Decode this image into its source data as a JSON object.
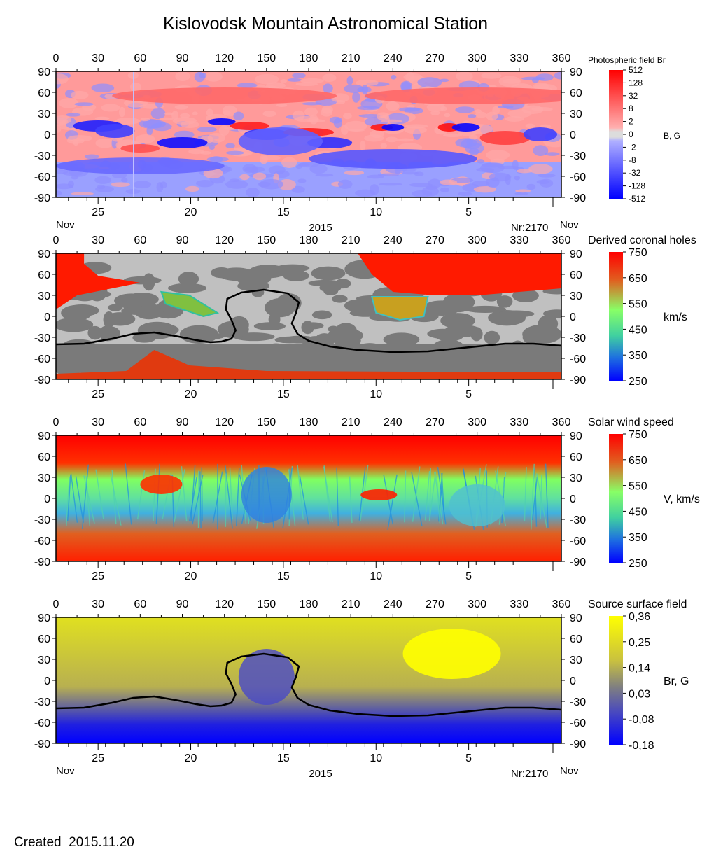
{
  "title": "Kislovodsk Mountain Astronomical Station",
  "created": "Created  2015.11.20",
  "axes": {
    "longitude_ticks": [
      0,
      30,
      60,
      90,
      120,
      150,
      180,
      210,
      240,
      270,
      300,
      330,
      360
    ],
    "latitude_ticks": [
      90,
      60,
      30,
      0,
      -30,
      -60,
      -90
    ],
    "date_ticks": [
      {
        "label": "25",
        "lon": 30
      },
      {
        "label": "20",
        "lon": 96
      },
      {
        "label": "15",
        "lon": 162
      },
      {
        "label": "10",
        "lon": 228
      },
      {
        "label": "5",
        "lon": 294
      }
    ],
    "month_left": "Nov",
    "month_right": "Nov",
    "year": "2015",
    "rotation": "Nr:2170"
  },
  "chart_data": [
    {
      "type": "heatmap",
      "title": "Photospheric field Br",
      "ylabel_right": "B, G",
      "xlim": [
        0,
        360
      ],
      "ylim": [
        -90,
        90
      ],
      "colorbar_ticks": [
        "512",
        "128",
        "32",
        "8",
        "2",
        "0",
        "-2",
        "-8",
        "-32",
        "-128",
        "-512"
      ],
      "colors": {
        "pos": "#ff0000",
        "neg": "#0000ff",
        "zero": "#dcdcdc"
      },
      "blobs": [
        {
          "lon": 30,
          "lat": 12,
          "w": 18,
          "h": 8,
          "v": -0.8
        },
        {
          "lon": 42,
          "lat": 5,
          "w": 14,
          "h": 10,
          "v": -0.6
        },
        {
          "lon": 60,
          "lat": -20,
          "w": 14,
          "h": 6,
          "v": 0.5
        },
        {
          "lon": 90,
          "lat": -12,
          "w": 18,
          "h": 8,
          "v": -0.9
        },
        {
          "lon": 118,
          "lat": 18,
          "w": 10,
          "h": 5,
          "v": -0.95
        },
        {
          "lon": 138,
          "lat": 12,
          "w": 14,
          "h": 6,
          "v": 0.8
        },
        {
          "lon": 150,
          "lat": 0,
          "w": 16,
          "h": 8,
          "v": -0.7
        },
        {
          "lon": 180,
          "lat": 3,
          "w": 18,
          "h": 6,
          "v": 0.8
        },
        {
          "lon": 195,
          "lat": -12,
          "w": 16,
          "h": 8,
          "v": -0.7
        },
        {
          "lon": 232,
          "lat": 10,
          "w": 8,
          "h": 5,
          "v": 0.85
        },
        {
          "lon": 240,
          "lat": 10,
          "w": 8,
          "h": 5,
          "v": -0.95
        },
        {
          "lon": 280,
          "lat": 10,
          "w": 8,
          "h": 6,
          "v": 0.9
        },
        {
          "lon": 292,
          "lat": 10,
          "w": 10,
          "h": 6,
          "v": -0.95
        },
        {
          "lon": 320,
          "lat": -5,
          "w": 18,
          "h": 10,
          "v": 0.6
        },
        {
          "lon": 345,
          "lat": 0,
          "w": 12,
          "h": 10,
          "v": -0.6
        },
        {
          "lon": 160,
          "lat": -10,
          "w": 30,
          "h": 20,
          "v": -0.4
        },
        {
          "lon": 240,
          "lat": -35,
          "w": 60,
          "h": 14,
          "v": -0.45
        },
        {
          "lon": 60,
          "lat": -45,
          "w": 60,
          "h": 12,
          "v": -0.35
        },
        {
          "lon": 120,
          "lat": 55,
          "w": 80,
          "h": 12,
          "v": 0.35
        },
        {
          "lon": 300,
          "lat": 55,
          "w": 80,
          "h": 12,
          "v": 0.35
        }
      ]
    },
    {
      "type": "heatmap",
      "title": "Derived coronal holes",
      "ylabel_right": "km/s",
      "xlim": [
        0,
        360
      ],
      "ylim": [
        -90,
        90
      ],
      "colorbar_ticks": [
        "750",
        "650",
        "550",
        "450",
        "350",
        "250"
      ],
      "neutral_line": true
    },
    {
      "type": "heatmap",
      "title": "Solar wind speed",
      "ylabel_right": "V, km/s",
      "xlim": [
        0,
        360
      ],
      "ylim": [
        -90,
        90
      ],
      "colorbar_ticks": [
        "750",
        "650",
        "550",
        "450",
        "350",
        "250"
      ],
      "vmin": 250,
      "vmax": 750
    },
    {
      "type": "heatmap",
      "title": "Source surface field",
      "ylabel_right": "Br, G",
      "xlim": [
        0,
        360
      ],
      "ylim": [
        -90,
        90
      ],
      "colorbar_ticks": [
        "0,36",
        "0,25",
        "0,14",
        "0,03",
        "-0,08",
        "-0,18"
      ],
      "vmin": -0.18,
      "vmax": 0.36,
      "colors": {
        "high": "#ffff00",
        "mid": "#808080",
        "low": "#0000ff"
      },
      "neutral_line": true
    }
  ],
  "neutral_line": [
    [
      0,
      -40
    ],
    [
      20,
      -39
    ],
    [
      40,
      -32
    ],
    [
      55,
      -25
    ],
    [
      70,
      -23
    ],
    [
      85,
      -28
    ],
    [
      100,
      -34
    ],
    [
      110,
      -37
    ],
    [
      118,
      -36
    ],
    [
      125,
      -32
    ],
    [
      128,
      -20
    ],
    [
      125,
      -5
    ],
    [
      121,
      10
    ],
    [
      122,
      25
    ],
    [
      132,
      34
    ],
    [
      148,
      38
    ],
    [
      165,
      33
    ],
    [
      173,
      20
    ],
    [
      171,
      5
    ],
    [
      168,
      -10
    ],
    [
      172,
      -25
    ],
    [
      180,
      -35
    ],
    [
      195,
      -43
    ],
    [
      215,
      -48
    ],
    [
      240,
      -51
    ],
    [
      265,
      -50
    ],
    [
      290,
      -45
    ],
    [
      305,
      -42
    ],
    [
      320,
      -39
    ],
    [
      340,
      -39
    ],
    [
      360,
      -42
    ]
  ]
}
